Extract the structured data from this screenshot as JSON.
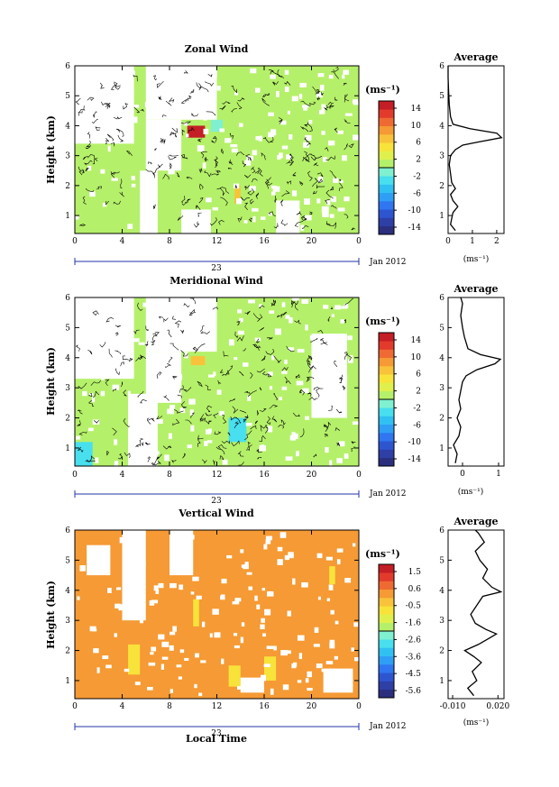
{
  "chart_data": [
    {
      "type": "heatmap",
      "title": "Zonal Wind",
      "ylabel": "Height (km)",
      "xlabel": "",
      "x_ticks": [
        "0",
        "4",
        "8",
        "12",
        "16",
        "20",
        "0"
      ],
      "y_ticks": [
        "1",
        "2",
        "3",
        "4",
        "5",
        "6"
      ],
      "xlim": [
        0,
        24
      ],
      "ylim": [
        0.4,
        6
      ],
      "date_label": "23",
      "date_suffix": "Jan 2012",
      "colorbar": {
        "unit": "(ms⁻¹)",
        "ticks": [
          "14",
          "10",
          "6",
          "2",
          "-2",
          "-6",
          "-10",
          "-14"
        ],
        "range": [
          -16,
          16
        ]
      },
      "background_value": 0.5,
      "patches": [
        {
          "x": [
            9.5,
            11
          ],
          "y": [
            3.6,
            4.0
          ],
          "value": 15
        },
        {
          "x": [
            13.5,
            14
          ],
          "y": [
            1.4,
            2.0
          ],
          "value": 7
        },
        {
          "x": [
            11.5,
            12.5
          ],
          "y": [
            3.8,
            4.2
          ],
          "value": -0.5
        }
      ],
      "white_regions": [
        {
          "x": [
            0,
            5
          ],
          "y": [
            3.4,
            6
          ]
        },
        {
          "x": [
            6,
            12
          ],
          "y": [
            4.2,
            6
          ]
        },
        {
          "x": [
            6,
            9
          ],
          "y": [
            2.5,
            4.2
          ]
        },
        {
          "x": [
            5.5,
            7
          ],
          "y": [
            0.4,
            2.5
          ]
        },
        {
          "x": [
            9,
            11.5
          ],
          "y": [
            0.4,
            1.2
          ]
        },
        {
          "x": [
            17,
            19
          ],
          "y": [
            0.4,
            1.5
          ]
        }
      ],
      "profile": {
        "title": "Average",
        "x_ticks": [
          "0",
          "1",
          "2"
        ],
        "xlim": [
          0,
          2.3
        ],
        "xlabel": "(ms⁻¹)",
        "points": [
          [
            0.3,
            0.5
          ],
          [
            0.1,
            0.7
          ],
          [
            0.15,
            0.9
          ],
          [
            0.2,
            1.1
          ],
          [
            0.4,
            1.3
          ],
          [
            0.2,
            1.5
          ],
          [
            0.1,
            1.7
          ],
          [
            0.3,
            1.9
          ],
          [
            0.15,
            2.1
          ],
          [
            0.1,
            2.4
          ],
          [
            0.05,
            2.7
          ],
          [
            0.1,
            3.0
          ],
          [
            0.3,
            3.2
          ],
          [
            0.6,
            3.35
          ],
          [
            1.2,
            3.45
          ],
          [
            2.2,
            3.6
          ],
          [
            2.0,
            3.75
          ],
          [
            0.9,
            3.9
          ],
          [
            0.2,
            4.05
          ],
          [
            0.1,
            4.3
          ],
          [
            0.05,
            4.7
          ],
          [
            0.02,
            5.2
          ],
          [
            0.0,
            5.6
          ],
          [
            0.0,
            6.0
          ]
        ]
      }
    },
    {
      "type": "heatmap",
      "title": "Meridional Wind",
      "ylabel": "Height (km)",
      "xlabel": "",
      "x_ticks": [
        "0",
        "4",
        "8",
        "12",
        "16",
        "20",
        "0"
      ],
      "y_ticks": [
        "1",
        "2",
        "3",
        "4",
        "5",
        "6"
      ],
      "xlim": [
        0,
        24
      ],
      "ylim": [
        0.4,
        6
      ],
      "date_label": "23",
      "date_suffix": "Jan 2012",
      "colorbar": {
        "unit": "(ms⁻¹)",
        "ticks": [
          "14",
          "10",
          "6",
          "2",
          "-2",
          "-6",
          "-10",
          "-14"
        ],
        "range": [
          -16,
          16
        ]
      },
      "background_value": 0.5,
      "patches": [
        {
          "x": [
            9.8,
            11
          ],
          "y": [
            3.75,
            4.05
          ],
          "value": 7
        },
        {
          "x": [
            0,
            1.5
          ],
          "y": [
            0.4,
            1.2
          ],
          "value": -2.5
        },
        {
          "x": [
            13,
            14.5
          ],
          "y": [
            1.2,
            2.0
          ],
          "value": -2.5
        }
      ],
      "white_regions": [
        {
          "x": [
            0,
            5
          ],
          "y": [
            3.3,
            6
          ]
        },
        {
          "x": [
            6,
            12
          ],
          "y": [
            4.2,
            6
          ]
        },
        {
          "x": [
            6,
            9
          ],
          "y": [
            2.5,
            4.2
          ]
        },
        {
          "x": [
            4.5,
            7
          ],
          "y": [
            0.4,
            2.8
          ]
        },
        {
          "x": [
            20,
            23
          ],
          "y": [
            2.0,
            4.8
          ]
        }
      ],
      "profile": {
        "title": "Average",
        "x_ticks": [
          "0",
          "1"
        ],
        "xlim": [
          -0.4,
          1.15
        ],
        "xlabel": "(ms⁻¹)",
        "points": [
          [
            -0.2,
            0.5
          ],
          [
            -0.15,
            0.8
          ],
          [
            -0.25,
            1.1
          ],
          [
            -0.1,
            1.4
          ],
          [
            -0.05,
            1.7
          ],
          [
            -0.15,
            2.0
          ],
          [
            -0.05,
            2.3
          ],
          [
            -0.1,
            2.6
          ],
          [
            -0.05,
            2.9
          ],
          [
            0.0,
            3.2
          ],
          [
            0.1,
            3.4
          ],
          [
            0.4,
            3.6
          ],
          [
            0.9,
            3.8
          ],
          [
            1.05,
            3.95
          ],
          [
            0.5,
            4.1
          ],
          [
            0.15,
            4.3
          ],
          [
            0.05,
            4.7
          ],
          [
            0.0,
            5.0
          ],
          [
            -0.05,
            5.4
          ],
          [
            0.0,
            5.8
          ],
          [
            -0.05,
            6.0
          ]
        ]
      }
    },
    {
      "type": "heatmap",
      "title": "Vertical Wind",
      "ylabel": "Height (km)",
      "xlabel": "Local Time",
      "x_ticks": [
        "0",
        "4",
        "8",
        "12",
        "16",
        "20",
        "0"
      ],
      "y_ticks": [
        "1",
        "2",
        "3",
        "4",
        "5",
        "6"
      ],
      "xlim": [
        0,
        24
      ],
      "ylim": [
        0.4,
        6
      ],
      "date_label": "23",
      "date_suffix": "Jan 2012",
      "colorbar": {
        "unit": "(ms⁻¹)",
        "ticks": [
          "1.5",
          "0.6",
          "-0.5",
          "-1.6",
          "-2.6",
          "-3.6",
          "-4.5",
          "-5.6"
        ],
        "range": [
          -6,
          2
        ]
      },
      "background_value": 0.3,
      "patches": [
        {
          "x": [
            4.5,
            5.5
          ],
          "y": [
            1.2,
            2.2
          ],
          "value": -0.6
        },
        {
          "x": [
            10,
            10.5
          ],
          "y": [
            2.8,
            3.7
          ],
          "value": -0.6
        },
        {
          "x": [
            13,
            14
          ],
          "y": [
            0.8,
            1.5
          ],
          "value": -0.6
        },
        {
          "x": [
            16,
            17
          ],
          "y": [
            1.0,
            1.8
          ],
          "value": -0.6
        },
        {
          "x": [
            21.5,
            22
          ],
          "y": [
            4.2,
            4.8
          ],
          "value": -0.6
        }
      ],
      "white_regions": [
        {
          "x": [
            4,
            6
          ],
          "y": [
            3.0,
            6
          ]
        },
        {
          "x": [
            1,
            3
          ],
          "y": [
            4.5,
            5.5
          ]
        },
        {
          "x": [
            8,
            10
          ],
          "y": [
            4.5,
            6
          ]
        },
        {
          "x": [
            14,
            16
          ],
          "y": [
            0.6,
            1.1
          ]
        },
        {
          "x": [
            21,
            23.5
          ],
          "y": [
            0.6,
            1.4
          ]
        }
      ],
      "profile": {
        "title": "Average",
        "x_ticks": [
          "-0.010",
          "0.020"
        ],
        "xlim": [
          -0.013,
          0.024
        ],
        "xlabel": "(ms⁻¹)",
        "points": [
          [
            0.004,
            0.5
          ],
          [
            0.0,
            0.75
          ],
          [
            0.006,
            1.0
          ],
          [
            0.003,
            1.3
          ],
          [
            0.009,
            1.6
          ],
          [
            0.004,
            1.8
          ],
          [
            -0.002,
            2.0
          ],
          [
            0.007,
            2.2
          ],
          [
            0.014,
            2.4
          ],
          [
            0.019,
            2.55
          ],
          [
            0.012,
            2.7
          ],
          [
            0.005,
            2.9
          ],
          [
            0.002,
            3.2
          ],
          [
            0.006,
            3.5
          ],
          [
            0.01,
            3.8
          ],
          [
            0.022,
            3.95
          ],
          [
            0.016,
            4.1
          ],
          [
            0.01,
            4.4
          ],
          [
            0.013,
            4.7
          ],
          [
            0.008,
            5.0
          ],
          [
            0.005,
            5.3
          ],
          [
            0.011,
            5.6
          ],
          [
            0.007,
            5.9
          ],
          [
            0.005,
            6.0
          ]
        ]
      }
    }
  ],
  "colormap": [
    "#2b2f7e",
    "#2e3fa6",
    "#2e55d0",
    "#2f76f0",
    "#2f9ff5",
    "#31c0f2",
    "#48dfee",
    "#7ff0d0",
    "#b5f06a",
    "#dff04c",
    "#f7e33a",
    "#f8c33a",
    "#f59a34",
    "#ee6a32",
    "#e23b2c",
    "#c41e26"
  ]
}
